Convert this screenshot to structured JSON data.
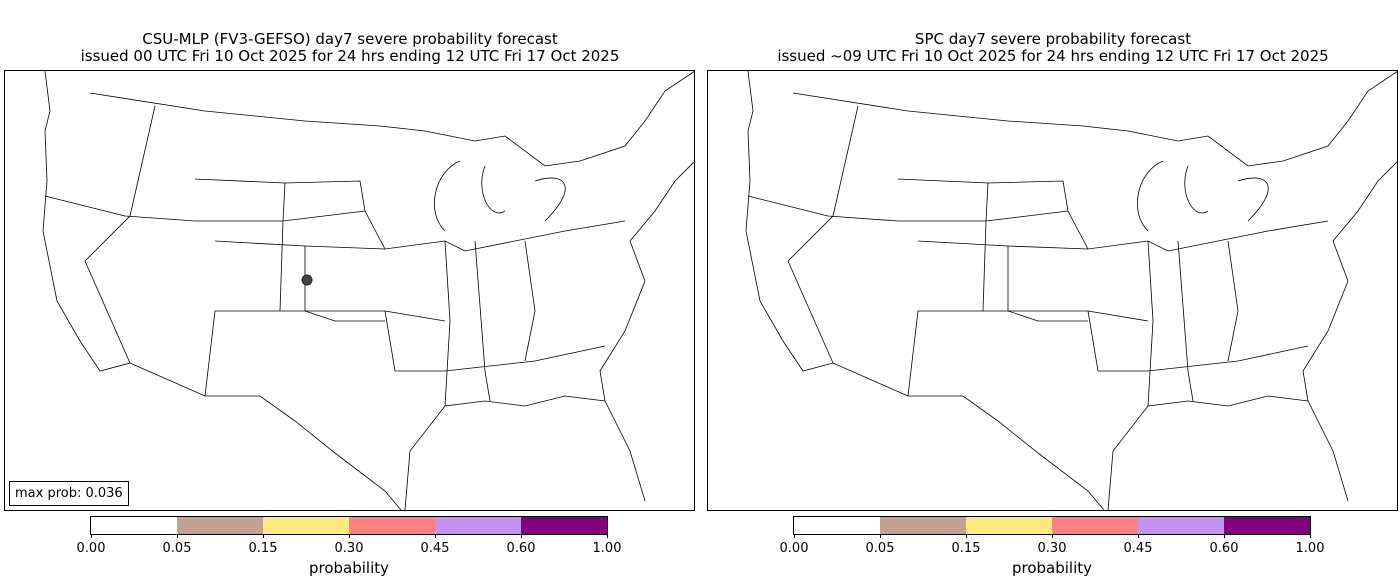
{
  "panels": [
    {
      "title_line1": "CSU-MLP (FV3-GEFSO) day7 severe probability forecast",
      "title_line2": "issued 00 UTC Fri 10 Oct 2025 for 24 hrs ending 12 UTC Fri 17 Oct 2025",
      "max_prob_label": "max prob: 0.036",
      "has_point": true
    },
    {
      "title_line1": "SPC day7 severe probability forecast",
      "title_line2": "issued ~09 UTC Fri 10 Oct 2025 for 24 hrs ending 12 UTC Fri 17 Oct 2025",
      "has_point": false
    }
  ],
  "colorbar": {
    "label": "probability",
    "ticks": [
      "0.00",
      "0.05",
      "0.15",
      "0.30",
      "0.45",
      "0.60",
      "1.00"
    ],
    "colors": [
      "#ffffff",
      "#c4a090",
      "#ffe97f",
      "#ff8080",
      "#c493f2",
      "#800080"
    ]
  }
}
